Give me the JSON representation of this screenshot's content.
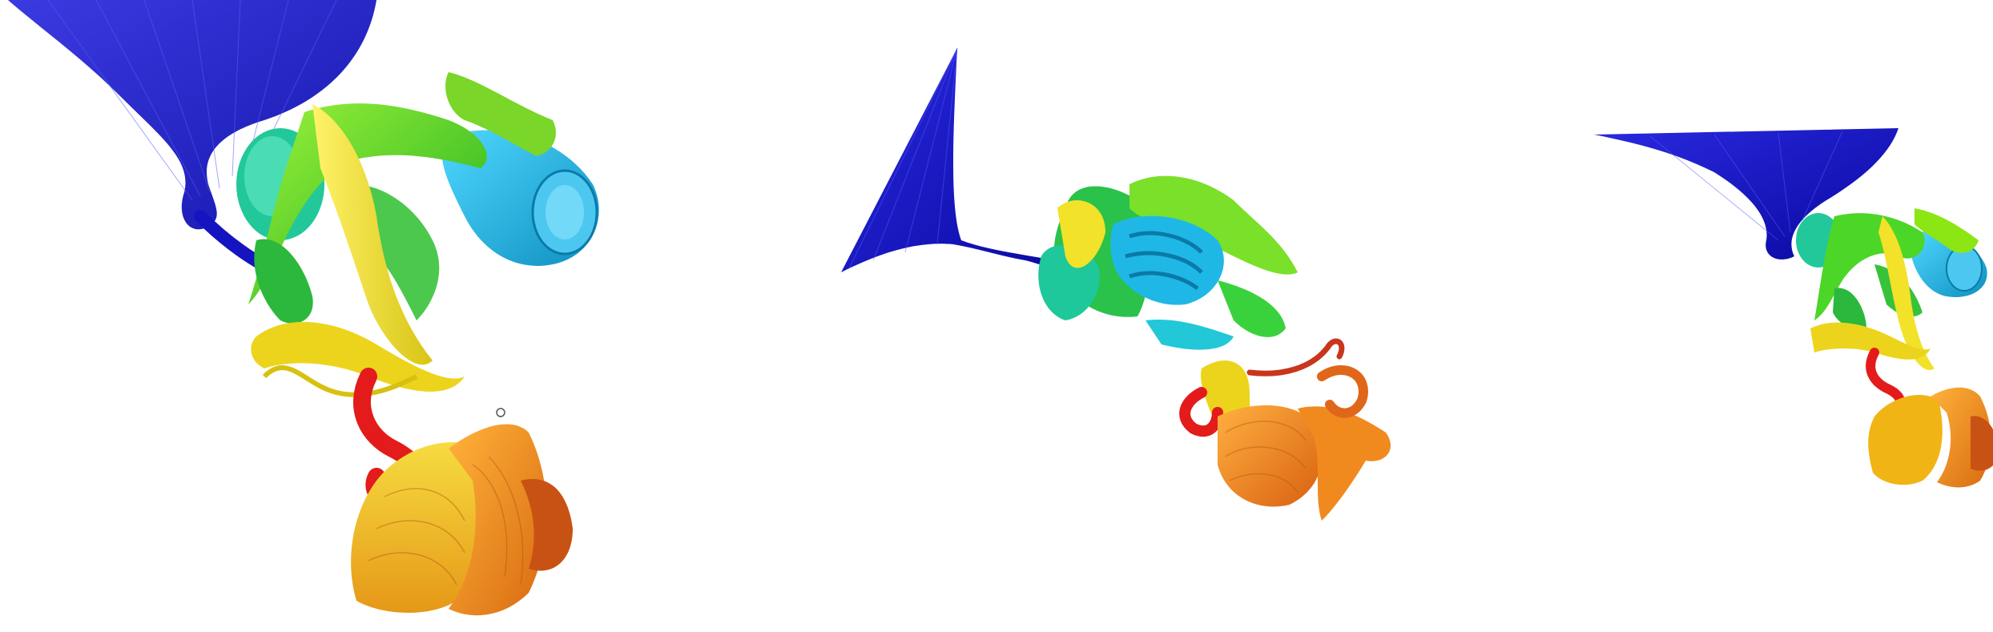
{
  "scene": {
    "background": "#ffffff",
    "description_colors": {
      "n_terminus": "#2020d0",
      "blue": "#1010c8",
      "cyan": "#19b4e6",
      "teal": "#1ec8a0",
      "green": "#3cd21e",
      "lime": "#8ce614",
      "yellow": "#f0e61e",
      "gold": "#f0b414",
      "orange": "#f08c1e",
      "dark_orange": "#d25a14",
      "red": "#e61e1e"
    },
    "panels": [
      {
        "id": "panel-1",
        "icon": "protein-cartoon-view-1"
      },
      {
        "id": "panel-2",
        "icon": "protein-cartoon-view-2"
      },
      {
        "id": "panel-3",
        "icon": "protein-cartoon-view-3"
      }
    ]
  }
}
